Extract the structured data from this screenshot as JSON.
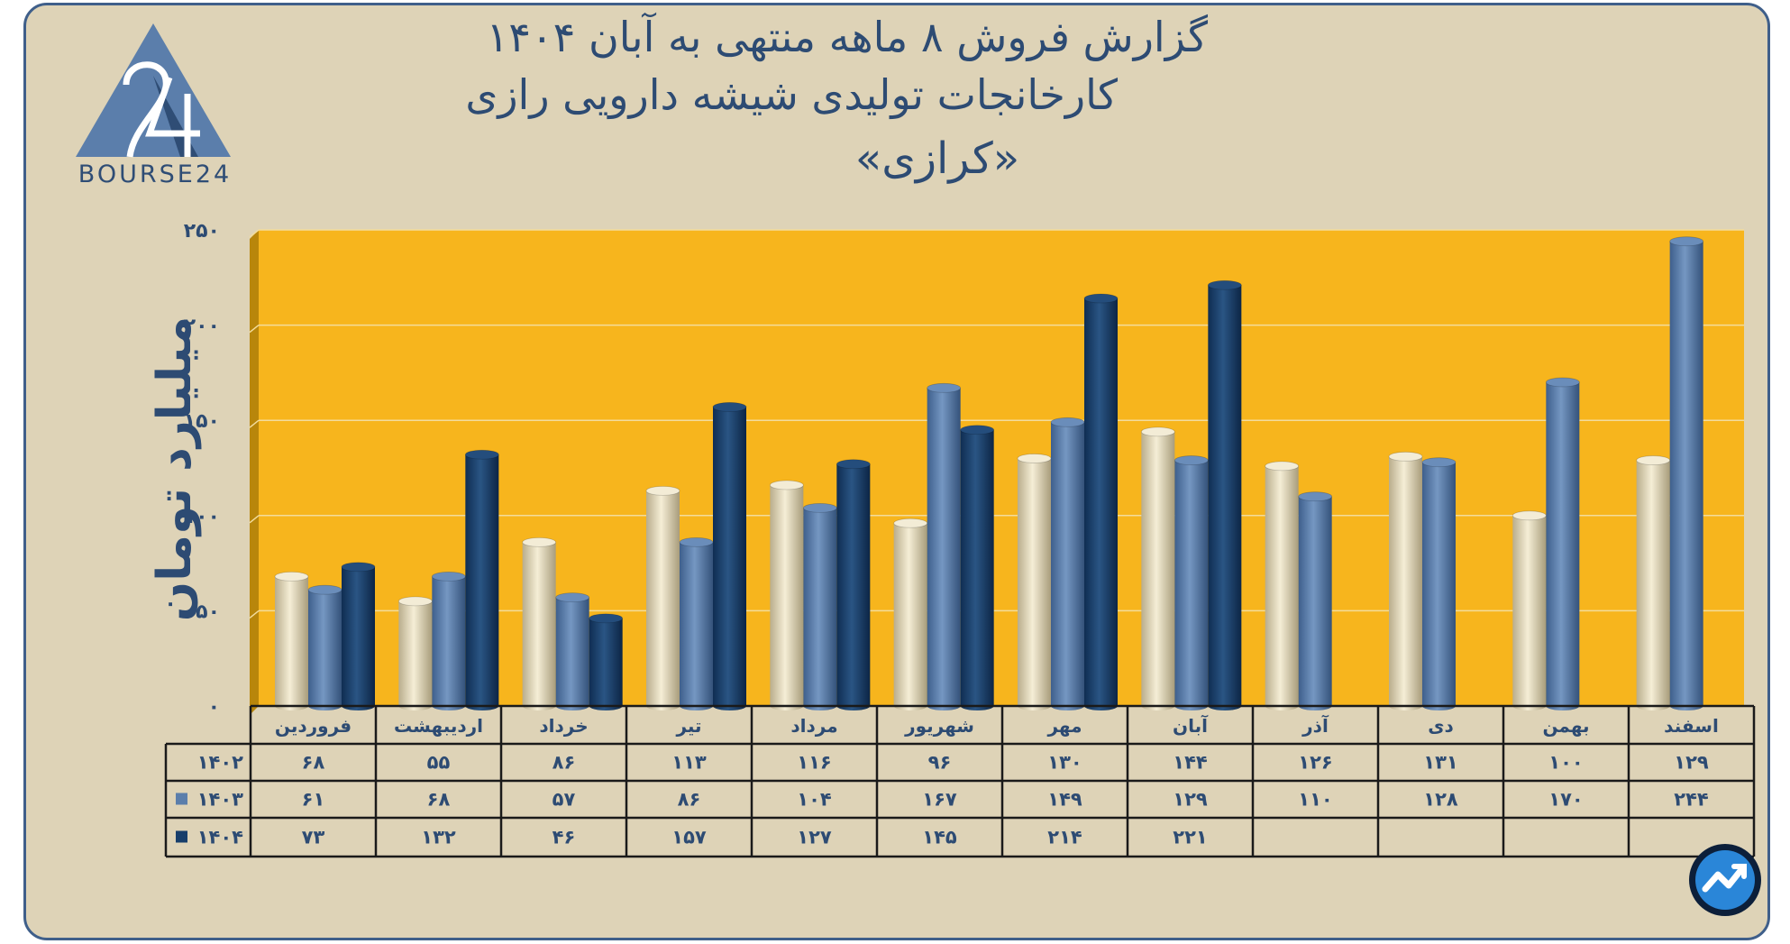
{
  "title_lines": [
    "گزارش  فروش ۸ ماهه منتهی به آبان ۱۴۰۴",
    "کارخانجات تولیدی شیشه دارویی رازی",
    "«کرازی»"
  ],
  "logo": {
    "text": "BOURSE24",
    "mark": "24"
  },
  "colors": {
    "background": "#ded3b7",
    "plot_area": "#f7b51d",
    "plot_side": "#b8860b",
    "s1402": "#ece3c7",
    "s1403": "#5b7eab",
    "s1404": "#173e6b",
    "text": "#2d4b73"
  },
  "chart_data": {
    "type": "bar",
    "ylabel": "میلیارد تومان",
    "ylim": [
      0,
      250
    ],
    "yticks": [
      "۰",
      "۵۰",
      "۱۰۰",
      "۱۵۰",
      "۲۰۰",
      "۲۵۰"
    ],
    "categories": [
      "فروردین",
      "اردیبهشت",
      "خرداد",
      "تیر",
      "مرداد",
      "شهریور",
      "مهر",
      "آبان",
      "آذر",
      "دی",
      "بهمن",
      "اسفند"
    ],
    "series": [
      {
        "name": "۱۴۰۲",
        "values": [
          68,
          55,
          86,
          113,
          116,
          96,
          130,
          144,
          126,
          131,
          100,
          129
        ],
        "labels": [
          "۶۸",
          "۵۵",
          "۸۶",
          "۱۱۳",
          "۱۱۶",
          "۹۶",
          "۱۳۰",
          "۱۴۴",
          "۱۲۶",
          "۱۳۱",
          "۱۰۰",
          "۱۲۹"
        ]
      },
      {
        "name": "۱۴۰۳",
        "values": [
          61,
          68,
          57,
          86,
          104,
          167,
          149,
          129,
          110,
          128,
          170,
          244
        ],
        "labels": [
          "۶۱",
          "۶۸",
          "۵۷",
          "۸۶",
          "۱۰۴",
          "۱۶۷",
          "۱۴۹",
          "۱۲۹",
          "۱۱۰",
          "۱۲۸",
          "۱۷۰",
          "۲۴۴"
        ]
      },
      {
        "name": "۱۴۰۴",
        "values": [
          73,
          132,
          46,
          157,
          127,
          145,
          214,
          221,
          null,
          null,
          null,
          null
        ],
        "labels": [
          "۷۳",
          "۱۳۲",
          "۴۶",
          "۱۵۷",
          "۱۲۷",
          "۱۴۵",
          "۲۱۴",
          "۲۲۱",
          "",
          "",
          "",
          ""
        ]
      }
    ],
    "grid": true,
    "data_table": true
  }
}
